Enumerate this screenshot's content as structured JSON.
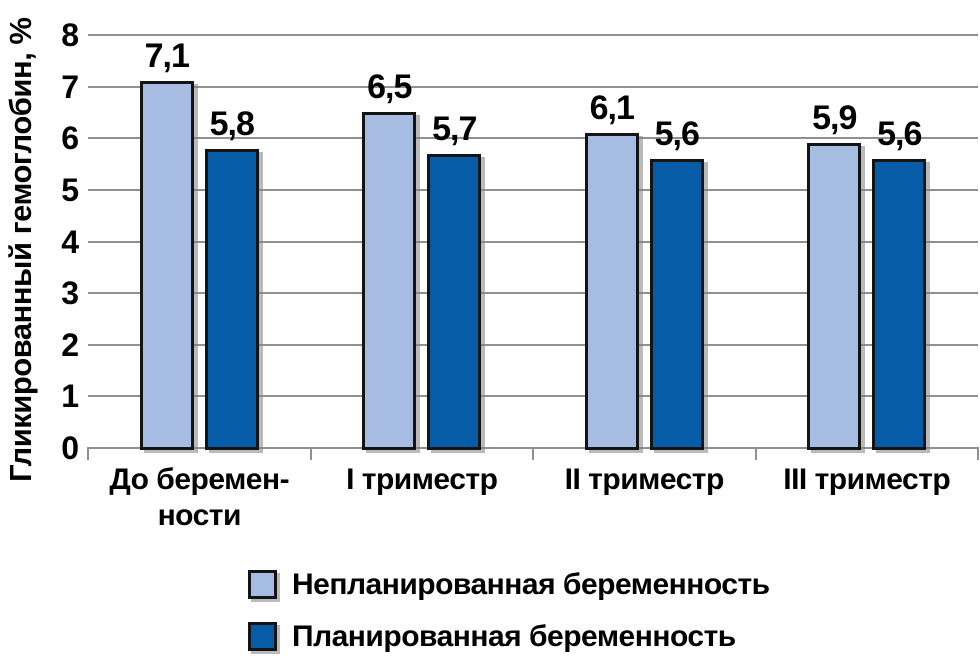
{
  "figure": {
    "background": "#ffffff"
  },
  "chart_data": {
    "type": "bar",
    "title": "",
    "ylabel": "Гликированный гемоглобин, %",
    "xlabel": "",
    "categories": [
      "До беремен-\nности",
      "I триместр",
      "II триместр",
      "III триместр"
    ],
    "series": [
      {
        "name": "Непланированная беременность",
        "color": "#A6BCE3",
        "values": [
          7.1,
          6.5,
          6.1,
          5.9
        ],
        "value_labels": [
          "7,1",
          "6,5",
          "6,1",
          "5,9"
        ]
      },
      {
        "name": "Планированная беременность",
        "color": "#075CA8",
        "values": [
          5.8,
          5.7,
          5.6,
          5.6
        ],
        "value_labels": [
          "5,8",
          "5,7",
          "5,6",
          "5,6"
        ]
      }
    ],
    "ylim": [
      0,
      8
    ],
    "y_ticks": [
      0,
      1,
      2,
      3,
      4,
      5,
      6,
      7,
      8
    ],
    "y_tick_labels": [
      "0",
      "1",
      "2",
      "3",
      "4",
      "5",
      "6",
      "7",
      "8"
    ],
    "grid": true,
    "gridline_color": "#909090",
    "bar_outline_color": "#141414",
    "legend_position": "bottom",
    "decimal_separator": ","
  }
}
